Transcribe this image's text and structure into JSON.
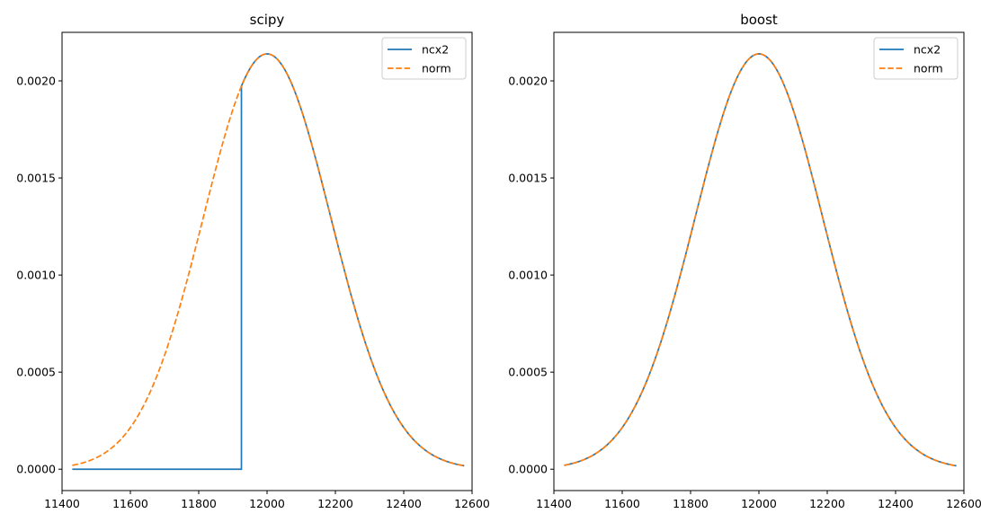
{
  "chart_data": [
    {
      "type": "line",
      "title": "scipy",
      "xlabel": "",
      "ylabel": "",
      "xlim": [
        11400,
        12600
      ],
      "ylim": [
        -0.00011,
        0.00225
      ],
      "xticks": [
        11400,
        11600,
        11800,
        12000,
        12200,
        12400,
        12600
      ],
      "xtick_labels": [
        "11400",
        "11600",
        "11800",
        "12000",
        "12200",
        "12400",
        "12600"
      ],
      "yticks": [
        0.0,
        0.0005,
        0.001,
        0.0015,
        0.002
      ],
      "ytick_labels": [
        "0.0000",
        "0.0005",
        "0.0010",
        "0.0015",
        "0.0020"
      ],
      "grid": false,
      "legend": "top-right",
      "x_start": 11430,
      "x_end": 12580,
      "series": [
        {
          "name": "ncx2",
          "style": "solid",
          "color": "#1f77b4",
          "x": [
            11430,
            11925,
            11925,
            11950,
            12000,
            12050,
            12100,
            12150,
            12200,
            12250,
            12300,
            12350,
            12400,
            12450,
            12500,
            12550,
            12580
          ],
          "y": [
            0.0,
            0.0,
            0.00199,
            0.00209,
            0.00214,
            0.00208,
            0.00191,
            0.00162,
            0.00129,
            0.00095,
            0.00065,
            0.00041,
            0.00024,
            0.00013,
            7e-05,
            3e-05,
            2e-05
          ]
        },
        {
          "name": "norm",
          "style": "dashed",
          "color": "#ff7f0e",
          "x": [
            11430,
            11450,
            11500,
            11550,
            11600,
            11650,
            11700,
            11750,
            11800,
            11850,
            11900,
            11950,
            12000,
            12050,
            12100,
            12150,
            12200,
            12250,
            12300,
            12350,
            12400,
            12450,
            12500,
            12550,
            12580
          ],
          "y": [
            2e-05,
            3e-05,
            7e-05,
            0.00013,
            0.00024,
            0.00041,
            0.00065,
            0.00095,
            0.00129,
            0.00162,
            0.00191,
            0.00209,
            0.00214,
            0.00209,
            0.00191,
            0.00162,
            0.00129,
            0.00095,
            0.00065,
            0.00041,
            0.00024,
            0.00013,
            7e-05,
            3e-05,
            2e-05
          ]
        }
      ]
    },
    {
      "type": "line",
      "title": "boost",
      "xlabel": "",
      "ylabel": "",
      "xlim": [
        11400,
        12600
      ],
      "ylim": [
        -0.00011,
        0.00225
      ],
      "xticks": [
        11400,
        11600,
        11800,
        12000,
        12200,
        12400,
        12600
      ],
      "xtick_labels": [
        "11400",
        "11600",
        "11800",
        "12000",
        "12200",
        "12400",
        "12600"
      ],
      "yticks": [
        0.0,
        0.0005,
        0.001,
        0.0015,
        0.002
      ],
      "ytick_labels": [
        "0.0000",
        "0.0005",
        "0.0010",
        "0.0015",
        "0.0020"
      ],
      "grid": false,
      "legend": "top-right",
      "x_start": 11430,
      "x_end": 12580,
      "series": [
        {
          "name": "ncx2",
          "style": "solid",
          "color": "#1f77b4",
          "x": [
            11430,
            11450,
            11500,
            11550,
            11600,
            11650,
            11700,
            11750,
            11800,
            11850,
            11900,
            11950,
            12000,
            12050,
            12100,
            12150,
            12200,
            12250,
            12300,
            12350,
            12400,
            12450,
            12500,
            12550,
            12580
          ],
          "y": [
            2e-05,
            3e-05,
            7e-05,
            0.00013,
            0.00024,
            0.00041,
            0.00065,
            0.00095,
            0.00129,
            0.00162,
            0.00191,
            0.00209,
            0.00214,
            0.00208,
            0.00191,
            0.00162,
            0.00129,
            0.00095,
            0.00065,
            0.00041,
            0.00024,
            0.00013,
            7e-05,
            3e-05,
            2e-05
          ]
        },
        {
          "name": "norm",
          "style": "dashed",
          "color": "#ff7f0e",
          "x": [
            11430,
            11450,
            11500,
            11550,
            11600,
            11650,
            11700,
            11750,
            11800,
            11850,
            11900,
            11950,
            12000,
            12050,
            12100,
            12150,
            12200,
            12250,
            12300,
            12350,
            12400,
            12450,
            12500,
            12550,
            12580
          ],
          "y": [
            2e-05,
            3e-05,
            7e-05,
            0.00013,
            0.00024,
            0.00041,
            0.00065,
            0.00095,
            0.00129,
            0.00162,
            0.00191,
            0.00209,
            0.00214,
            0.00209,
            0.00191,
            0.00162,
            0.00129,
            0.00095,
            0.00065,
            0.00041,
            0.00024,
            0.00013,
            7e-05,
            3e-05,
            2e-05
          ]
        }
      ]
    }
  ]
}
